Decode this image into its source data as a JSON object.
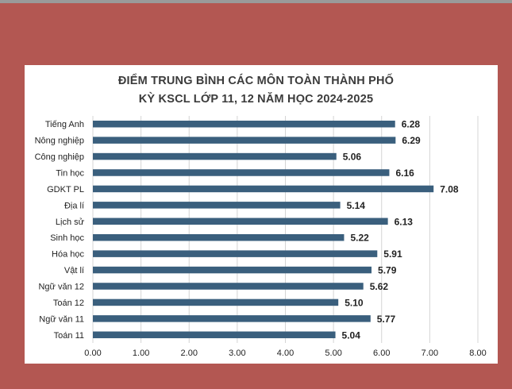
{
  "chart_data": {
    "type": "bar",
    "orientation": "horizontal",
    "title": "ĐIỂM TRUNG BÌNH CÁC MÔN TOÀN THÀNH PHỐ",
    "subtitle": "KỲ KSCL LỚP 11, 12 NĂM HỌC 2024-2025",
    "categories": [
      "Tiếng Anh",
      "Nông nghiệp",
      "Công nghiệp",
      "Tin học",
      "GDKT PL",
      "Địa lí",
      "Lịch sử",
      "Sinh học",
      "Hóa học",
      "Vật lí",
      "Ngữ văn 12",
      "Toán 12",
      "Ngữ văn 11",
      "Toán 11"
    ],
    "values": [
      6.28,
      6.29,
      5.06,
      6.16,
      7.08,
      5.14,
      6.13,
      5.22,
      5.91,
      5.79,
      5.62,
      5.1,
      5.77,
      5.04
    ],
    "value_labels": [
      "6.28",
      "6.29",
      "5.06",
      "6.16",
      "7.08",
      "5.14",
      "6.13",
      "5.22",
      "5.91",
      "5.79",
      "5.62",
      "5.10",
      "5.77",
      "5.04"
    ],
    "xticks": [
      "0.00",
      "1.00",
      "2.00",
      "3.00",
      "4.00",
      "5.00",
      "6.00",
      "7.00",
      "8.00"
    ],
    "xlim": [
      0,
      8
    ],
    "grid": "vertical",
    "legend": "none",
    "bar_color": "#3a5f7d"
  },
  "colors": {
    "background": "#b35752",
    "card": "#ffffff",
    "bar": "#3a5f7d",
    "grid": "#d4d4d4",
    "title": "#3b3b3b",
    "label": "#222222"
  }
}
